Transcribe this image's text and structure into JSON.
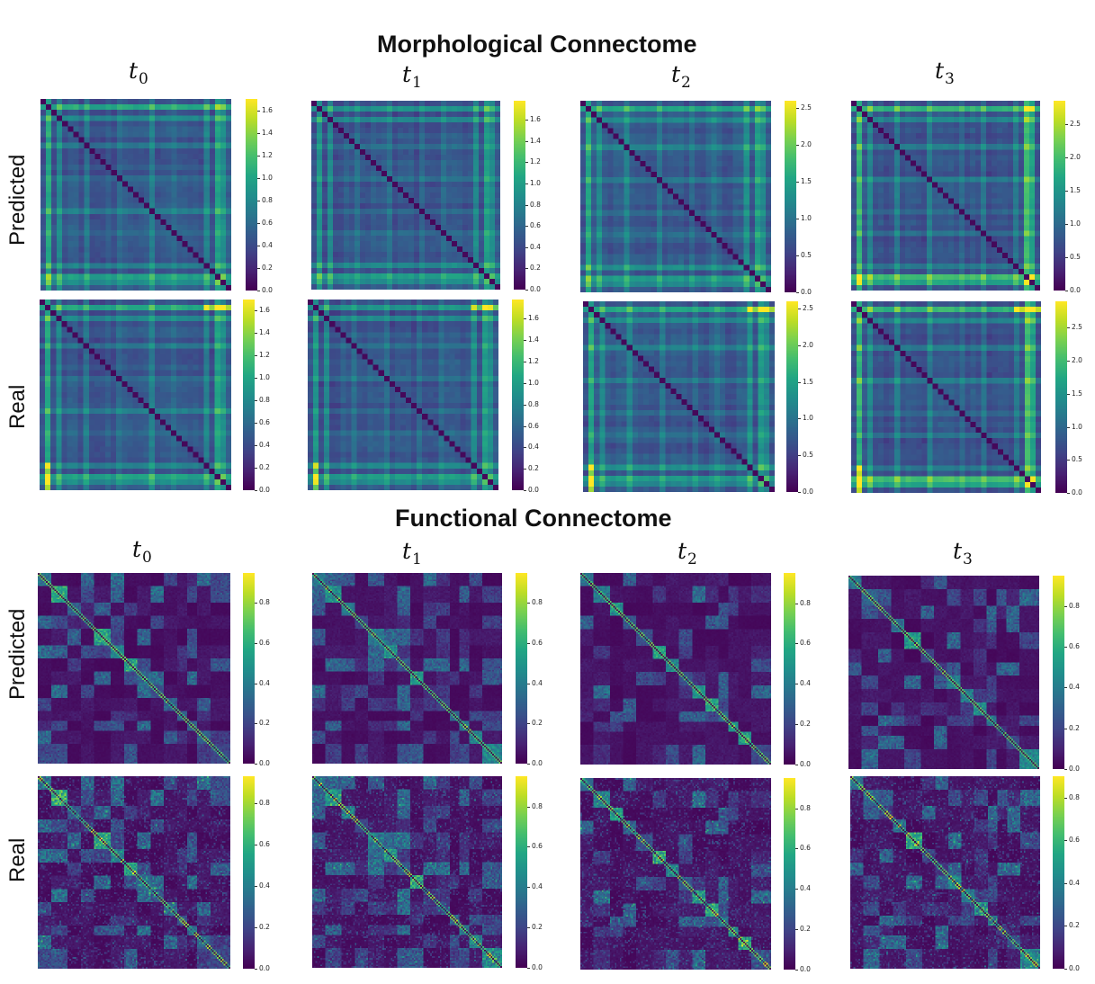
{
  "titles": {
    "morphological": "Morphological Connectome",
    "functional": "Functional Connectome"
  },
  "time_labels": [
    {
      "base": "t",
      "sub": "0"
    },
    {
      "base": "t",
      "sub": "1"
    },
    {
      "base": "t",
      "sub": "2"
    },
    {
      "base": "t",
      "sub": "3"
    }
  ],
  "row_labels": {
    "predicted": "Predicted",
    "real": "Real"
  },
  "colormap": "viridis",
  "chart_data": [
    {
      "type": "heatmap",
      "group": "Morphological Connectome",
      "row": "Predicted",
      "time": "t0",
      "size": 35,
      "vmin": 0,
      "vmax": 1.7,
      "ticks": [
        "0.0",
        "0.2",
        "0.4",
        "0.6",
        "0.8",
        "1.0",
        "1.2",
        "1.4",
        "1.6"
      ],
      "seed": 11,
      "style": "morph",
      "variant": "pred"
    },
    {
      "type": "heatmap",
      "group": "Morphological Connectome",
      "row": "Predicted",
      "time": "t1",
      "size": 35,
      "vmin": 0,
      "vmax": 1.78,
      "ticks": [
        "0.0",
        "0.2",
        "0.4",
        "0.6",
        "0.8",
        "1.0",
        "1.2",
        "1.4",
        "1.6"
      ],
      "seed": 12,
      "style": "morph",
      "variant": "pred"
    },
    {
      "type": "heatmap",
      "group": "Morphological Connectome",
      "row": "Predicted",
      "time": "t2",
      "size": 35,
      "vmin": 0,
      "vmax": 2.6,
      "ticks": [
        "0.0",
        "0.5",
        "1.0",
        "1.5",
        "2.0",
        "2.5"
      ],
      "seed": 13,
      "style": "morph",
      "variant": "pred"
    },
    {
      "type": "heatmap",
      "group": "Morphological Connectome",
      "row": "Predicted",
      "time": "t3",
      "size": 35,
      "vmin": 0,
      "vmax": 2.85,
      "ticks": [
        "0.0",
        "0.5",
        "1.0",
        "1.5",
        "2.0",
        "2.5"
      ],
      "seed": 14,
      "style": "morph",
      "variant": "pred"
    },
    {
      "type": "heatmap",
      "group": "Morphological Connectome",
      "row": "Real",
      "time": "t0",
      "size": 35,
      "vmin": 0,
      "vmax": 1.7,
      "ticks": [
        "0.0",
        "0.2",
        "0.4",
        "0.6",
        "0.8",
        "1.0",
        "1.2",
        "1.4",
        "1.6"
      ],
      "seed": 11,
      "style": "morph",
      "variant": "real"
    },
    {
      "type": "heatmap",
      "group": "Morphological Connectome",
      "row": "Real",
      "time": "t1",
      "size": 35,
      "vmin": 0,
      "vmax": 1.78,
      "ticks": [
        "0.0",
        "0.2",
        "0.4",
        "0.6",
        "0.8",
        "1.0",
        "1.2",
        "1.4",
        "1.6"
      ],
      "seed": 12,
      "style": "morph",
      "variant": "real"
    },
    {
      "type": "heatmap",
      "group": "Morphological Connectome",
      "row": "Real",
      "time": "t2",
      "size": 35,
      "vmin": 0,
      "vmax": 2.6,
      "ticks": [
        "0.0",
        "0.5",
        "1.0",
        "1.5",
        "2.0",
        "2.5"
      ],
      "seed": 13,
      "style": "morph",
      "variant": "real"
    },
    {
      "type": "heatmap",
      "group": "Morphological Connectome",
      "row": "Real",
      "time": "t3",
      "size": 35,
      "vmin": 0,
      "vmax": 2.9,
      "ticks": [
        "0.0",
        "0.5",
        "1.0",
        "1.5",
        "2.0",
        "2.5"
      ],
      "seed": 14,
      "style": "morph",
      "variant": "real"
    },
    {
      "type": "heatmap",
      "group": "Functional Connectome",
      "row": "Predicted",
      "time": "t0",
      "size": 116,
      "vmin": 0,
      "vmax": 0.95,
      "ticks": [
        "0.0",
        "0.2",
        "0.4",
        "0.6",
        "0.8"
      ],
      "seed": 21,
      "style": "func",
      "variant": "pred"
    },
    {
      "type": "heatmap",
      "group": "Functional Connectome",
      "row": "Predicted",
      "time": "t1",
      "size": 116,
      "vmin": 0,
      "vmax": 0.95,
      "ticks": [
        "0.0",
        "0.2",
        "0.4",
        "0.6",
        "0.8"
      ],
      "seed": 22,
      "style": "func",
      "variant": "pred"
    },
    {
      "type": "heatmap",
      "group": "Functional Connectome",
      "row": "Predicted",
      "time": "t2",
      "size": 116,
      "vmin": 0,
      "vmax": 0.95,
      "ticks": [
        "0.0",
        "0.2",
        "0.4",
        "0.6",
        "0.8"
      ],
      "seed": 23,
      "style": "func",
      "variant": "pred"
    },
    {
      "type": "heatmap",
      "group": "Functional Connectome",
      "row": "Predicted",
      "time": "t3",
      "size": 116,
      "vmin": 0,
      "vmax": 0.95,
      "ticks": [
        "0.0",
        "0.2",
        "0.4",
        "0.6",
        "0.8"
      ],
      "seed": 24,
      "style": "func",
      "variant": "pred"
    },
    {
      "type": "heatmap",
      "group": "Functional Connectome",
      "row": "Real",
      "time": "t0",
      "size": 116,
      "vmin": 0,
      "vmax": 0.93,
      "ticks": [
        "0.0",
        "0.2",
        "0.4",
        "0.6",
        "0.8"
      ],
      "seed": 21,
      "style": "func",
      "variant": "real"
    },
    {
      "type": "heatmap",
      "group": "Functional Connectome",
      "row": "Real",
      "time": "t1",
      "size": 116,
      "vmin": 0,
      "vmax": 0.95,
      "ticks": [
        "0.0",
        "0.2",
        "0.4",
        "0.6",
        "0.8"
      ],
      "seed": 22,
      "style": "func",
      "variant": "real"
    },
    {
      "type": "heatmap",
      "group": "Functional Connectome",
      "row": "Real",
      "time": "t2",
      "size": 116,
      "vmin": 0,
      "vmax": 0.95,
      "ticks": [
        "0.0",
        "0.2",
        "0.4",
        "0.6",
        "0.8"
      ],
      "seed": 23,
      "style": "func",
      "variant": "real"
    },
    {
      "type": "heatmap",
      "group": "Functional Connectome",
      "row": "Real",
      "time": "t3",
      "size": 116,
      "vmin": 0,
      "vmax": 0.9,
      "ticks": [
        "0.0",
        "0.2",
        "0.4",
        "0.6",
        "0.8"
      ],
      "seed": 24,
      "style": "func",
      "variant": "real"
    }
  ]
}
